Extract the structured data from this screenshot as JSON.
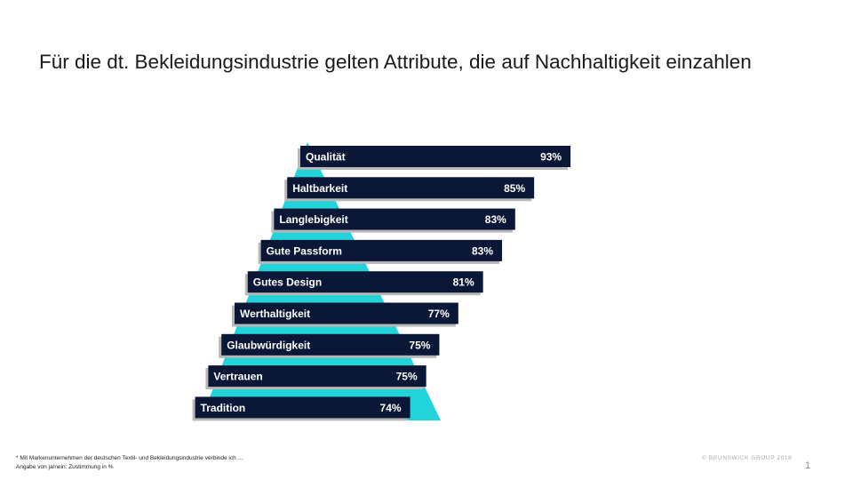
{
  "title": "Für die dt. Bekleidungsindustrie gelten Attribute, die auf Nachhaltigkeit einzahlen",
  "colors": {
    "bar": "#0b1736",
    "triangle": "#22d3d9",
    "shadow": "#b7b7b7",
    "text": "#ffffff"
  },
  "chart_data": {
    "type": "bar",
    "orientation": "horizontal",
    "categories": [
      "Qualität",
      "Haltbarkeit",
      "Langlebigkeit",
      "Gute Passform",
      "Gutes Design",
      "Werthaltigkeit",
      "Glaubwürdigkeit",
      "Vertrauen",
      "Tradition"
    ],
    "values": [
      93,
      85,
      83,
      83,
      81,
      77,
      75,
      75,
      74
    ],
    "value_labels": [
      "93%",
      "85%",
      "83%",
      "83%",
      "81%",
      "77%",
      "75%",
      "75%",
      "74%"
    ],
    "unit": "%"
  },
  "footnote": {
    "line1": "* Mit Markenunternehmen der deutschen Textil- und Bekleidungsindustrie verbinde ich …",
    "line2": "Angabe von ja/nein: Zustimmung in %"
  },
  "copyright": "© BRUNSWICK GROUP 2018",
  "page_number": "1"
}
